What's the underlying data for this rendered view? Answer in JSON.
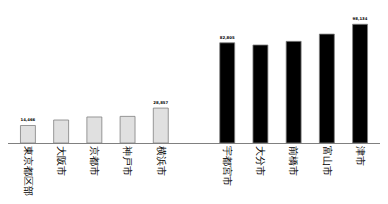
{
  "chart_data": {
    "type": "bar",
    "categories": [
      "東京都区部",
      "大阪市",
      "京都市",
      "神戸市",
      "横浜市",
      null,
      "宇都宮市",
      "大分市",
      "前橋市",
      "富山市",
      "津市"
    ],
    "values": [
      14466,
      19000,
      21500,
      22000,
      28857,
      null,
      82805,
      81000,
      84000,
      90000,
      98134
    ],
    "value_labels": [
      "14,466",
      null,
      null,
      null,
      "28,857",
      null,
      "82,805",
      null,
      null,
      null,
      "98,134"
    ],
    "data_labels": true,
    "colors": [
      "#e0e0e0",
      "#e0e0e0",
      "#e0e0e0",
      "#e0e0e0",
      "#e0e0e0",
      null,
      "#000000",
      "#000000",
      "#000000",
      "#000000",
      "#000000"
    ],
    "ylim": [
      0,
      100000
    ],
    "tick_labels": "x",
    "grid": false
  }
}
